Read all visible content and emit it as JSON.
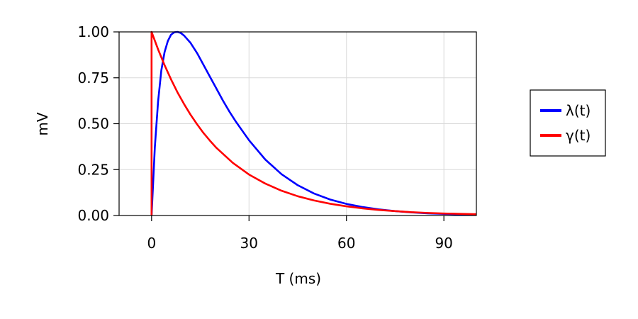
{
  "chart_data": {
    "type": "line",
    "title": "",
    "xlabel": "T (ms)",
    "ylabel": "mV",
    "xlim": [
      -10,
      100
    ],
    "ylim": [
      0,
      1
    ],
    "xticks": [
      0,
      30,
      60,
      90
    ],
    "yticks": [
      0,
      0.25,
      0.5,
      0.75,
      1.0
    ],
    "xtick_labels": [
      "0",
      "30",
      "60",
      "90"
    ],
    "ytick_labels": [
      "0.00",
      "0.25",
      "0.50",
      "0.75",
      "1.00"
    ],
    "grid": true,
    "legend_position": "right",
    "series": [
      {
        "name": "λ(t)",
        "color": "#0000ff",
        "x": [
          0,
          1,
          2,
          3,
          4,
          5,
          6,
          7,
          8,
          9,
          10,
          12,
          14,
          16,
          18,
          20,
          22,
          24,
          26,
          28,
          30,
          35,
          40,
          45,
          50,
          55,
          60,
          65,
          70,
          75,
          80,
          85,
          90,
          95,
          100
        ],
        "y": [
          0.0,
          0.37,
          0.62,
          0.79,
          0.89,
          0.95,
          0.985,
          0.998,
          1.0,
          0.994,
          0.98,
          0.94,
          0.885,
          0.82,
          0.755,
          0.69,
          0.625,
          0.565,
          0.51,
          0.46,
          0.41,
          0.305,
          0.225,
          0.165,
          0.12,
          0.087,
          0.063,
          0.046,
          0.033,
          0.024,
          0.017,
          0.012,
          0.009,
          0.006,
          0.005
        ]
      },
      {
        "name": "γ(t)",
        "color": "#ff0000",
        "x": [
          0,
          0,
          2,
          4,
          6,
          8,
          10,
          12,
          14,
          16,
          18,
          20,
          25,
          30,
          35,
          40,
          45,
          50,
          55,
          60,
          65,
          70,
          75,
          80,
          85,
          90,
          95,
          100
        ],
        "y": [
          0.0,
          1.0,
          0.905,
          0.819,
          0.741,
          0.67,
          0.607,
          0.549,
          0.497,
          0.449,
          0.407,
          0.368,
          0.287,
          0.223,
          0.174,
          0.135,
          0.105,
          0.082,
          0.064,
          0.05,
          0.039,
          0.03,
          0.024,
          0.018,
          0.014,
          0.011,
          0.009,
          0.007
        ]
      }
    ]
  }
}
